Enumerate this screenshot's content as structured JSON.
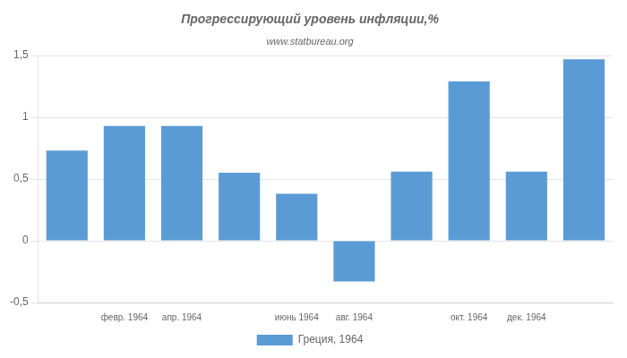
{
  "chart_data": {
    "type": "bar",
    "title": "Прогрессирующий уровень инфляции,%",
    "subtitle": "www.statbureau.org",
    "categories": [
      null,
      "февр. 1964",
      "апр. 1964",
      null,
      "июнь 1964",
      "авг. 1964",
      null,
      "окт. 1964",
      "дек. 1964",
      null
    ],
    "series": [
      {
        "name": "Греция, 1964",
        "color": "#5b9bd5",
        "values": [
          0.73,
          0.93,
          0.93,
          0.55,
          0.38,
          -0.33,
          0.56,
          1.29,
          0.56,
          1.47
        ]
      }
    ],
    "ylim": [
      -0.5,
      1.5
    ],
    "yticks": [
      {
        "value": -0.5,
        "label": "-0,5"
      },
      0,
      {
        "value": 0.5,
        "label": "0,5"
      },
      1,
      {
        "value": 1.5,
        "label": "1,5"
      }
    ],
    "grid": true,
    "legend": "bottom"
  }
}
